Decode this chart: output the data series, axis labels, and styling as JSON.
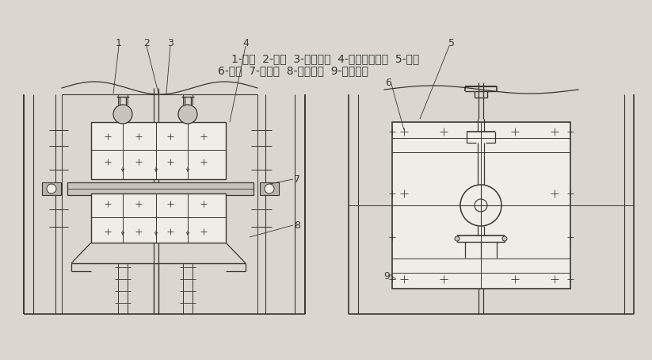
{
  "bg_color": "#dbd7d0",
  "lc": "#3a3530",
  "fig_width": 8.23,
  "fig_height": 4.54,
  "caption_line1": "1-链条  2-料斗  3-丝杠螺杆  4-滑板升降螺母  5-滑板",
  "caption_line2": "6-机壳  7-轴承座  8-链轮及轴  9-滑板压条",
  "caption_fontsize": 10.0,
  "label_fontsize": 9.0,
  "white": "#f0ede8",
  "gray1": "#c8c4bc",
  "gray2": "#b8b4ac"
}
